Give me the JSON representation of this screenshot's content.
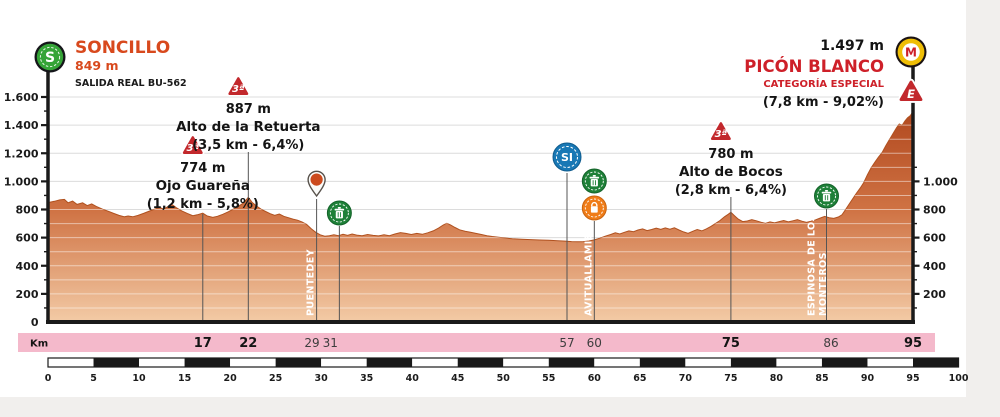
{
  "colors": {
    "card_bg": "#ffffff",
    "page_bg": "#f1efed",
    "accent_orange": "#d8491d",
    "accent_red": "#ce2029",
    "pink_band": "#f4b9cb",
    "axis_black": "#1a1a1a",
    "marker_line": "#555555",
    "grid_gray": "#dcdcdc",
    "profile_top": "#ad431a",
    "profile_mid": "#cf7243",
    "profile_bottom": "#f3cba6",
    "climb_triangle_red": "#c2282c",
    "sprint_blue": "#1878b5",
    "trash_green": "#1e8038",
    "feed_orange": "#ef7c18",
    "pin_orange": "#cc4a1d",
    "start_green": "#35a437",
    "finish_gold": "#efbe06"
  },
  "header": {
    "start": {
      "name": "SONCILLO",
      "elevation": "849 m",
      "road": "SALIDA REAL BU-562"
    },
    "finish": {
      "elevation": "1.497 m",
      "name": "PICÓN BLANCO",
      "category": "CATEGORÍA ESPECIAL",
      "stats": "(7,8 km - 9,02%)"
    }
  },
  "icons": {
    "start_letter": "S",
    "finish_letter": "M",
    "finish_climb_letter": "E"
  },
  "chart_data": {
    "type": "area",
    "xlabel": "Km",
    "ylabel": "m",
    "xlim": [
      0,
      100
    ],
    "ylim": [
      0,
      1700
    ],
    "race_distance_km": 95,
    "grid": true,
    "yticks_left": [
      {
        "v": 1600,
        "label": "1.600"
      },
      {
        "v": 1400,
        "label": "1.400"
      },
      {
        "v": 1200,
        "label": "1.200"
      },
      {
        "v": 1000,
        "label": "1.000"
      },
      {
        "v": 800,
        "label": "800"
      },
      {
        "v": 600,
        "label": "600"
      },
      {
        "v": 400,
        "label": "400"
      },
      {
        "v": 200,
        "label": "200"
      },
      {
        "v": 0,
        "label": "0"
      }
    ],
    "yticks_right": [
      {
        "v": 1000,
        "label": "1.000"
      },
      {
        "v": 800,
        "label": "800"
      },
      {
        "v": 600,
        "label": "600"
      },
      {
        "v": 400,
        "label": "400"
      },
      {
        "v": 200,
        "label": "200"
      }
    ],
    "profile": [
      [
        0,
        849
      ],
      [
        0.7,
        858
      ],
      [
        1.3,
        868
      ],
      [
        1.8,
        872
      ],
      [
        2.2,
        848
      ],
      [
        2.7,
        860
      ],
      [
        3.2,
        836
      ],
      [
        3.8,
        848
      ],
      [
        4.3,
        828
      ],
      [
        4.8,
        840
      ],
      [
        5.3,
        822
      ],
      [
        6,
        802
      ],
      [
        6.6,
        788
      ],
      [
        7.2,
        772
      ],
      [
        7.8,
        758
      ],
      [
        8.4,
        748
      ],
      [
        8.8,
        754
      ],
      [
        9.3,
        748
      ],
      [
        9.9,
        758
      ],
      [
        10.5,
        772
      ],
      [
        11.2,
        790
      ],
      [
        11.8,
        804
      ],
      [
        12.3,
        814
      ],
      [
        12.7,
        802
      ],
      [
        13.2,
        822
      ],
      [
        13.6,
        836
      ],
      [
        14.1,
        812
      ],
      [
        14.7,
        790
      ],
      [
        15.3,
        772
      ],
      [
        15.9,
        756
      ],
      [
        16.4,
        762
      ],
      [
        17,
        774
      ],
      [
        17.5,
        754
      ],
      [
        18.1,
        744
      ],
      [
        18.6,
        752
      ],
      [
        19.2,
        766
      ],
      [
        19.8,
        784
      ],
      [
        20.4,
        804
      ],
      [
        21,
        826
      ],
      [
        21.5,
        848
      ],
      [
        22,
        887
      ],
      [
        22.4,
        852
      ],
      [
        22.9,
        824
      ],
      [
        23.4,
        802
      ],
      [
        23.9,
        786
      ],
      [
        24.4,
        770
      ],
      [
        24.9,
        758
      ],
      [
        25.4,
        768
      ],
      [
        25.9,
        752
      ],
      [
        26.4,
        742
      ],
      [
        26.9,
        732
      ],
      [
        27.4,
        724
      ],
      [
        27.9,
        712
      ],
      [
        28.4,
        694
      ],
      [
        28.9,
        664
      ],
      [
        29.4,
        638
      ],
      [
        29.9,
        620
      ],
      [
        30.4,
        610
      ],
      [
        30.9,
        613
      ],
      [
        31.4,
        620
      ],
      [
        31.9,
        614
      ],
      [
        32.4,
        624
      ],
      [
        32.9,
        616
      ],
      [
        33.4,
        626
      ],
      [
        33.9,
        618
      ],
      [
        34.5,
        614
      ],
      [
        35.1,
        622
      ],
      [
        35.7,
        616
      ],
      [
        36.3,
        612
      ],
      [
        36.9,
        620
      ],
      [
        37.5,
        614
      ],
      [
        38.1,
        626
      ],
      [
        38.7,
        636
      ],
      [
        39.3,
        630
      ],
      [
        39.9,
        622
      ],
      [
        40.5,
        630
      ],
      [
        41.1,
        624
      ],
      [
        41.7,
        634
      ],
      [
        42.3,
        648
      ],
      [
        42.9,
        668
      ],
      [
        43.4,
        690
      ],
      [
        43.8,
        702
      ],
      [
        44.2,
        690
      ],
      [
        44.7,
        672
      ],
      [
        45.2,
        656
      ],
      [
        45.8,
        646
      ],
      [
        46.4,
        638
      ],
      [
        47,
        630
      ],
      [
        47.6,
        622
      ],
      [
        48.2,
        614
      ],
      [
        48.8,
        608
      ],
      [
        49.5,
        602
      ],
      [
        50.2,
        597
      ],
      [
        51,
        592
      ],
      [
        52,
        589
      ],
      [
        53,
        586
      ],
      [
        54,
        583
      ],
      [
        55,
        581
      ],
      [
        56,
        578
      ],
      [
        56.8,
        575
      ],
      [
        57.5,
        572
      ],
      [
        58.2,
        570
      ],
      [
        58.8,
        572
      ],
      [
        59.4,
        576
      ],
      [
        60,
        584
      ],
      [
        60.6,
        596
      ],
      [
        61.2,
        610
      ],
      [
        61.8,
        622
      ],
      [
        62.3,
        634
      ],
      [
        62.8,
        626
      ],
      [
        63.3,
        638
      ],
      [
        63.8,
        648
      ],
      [
        64.3,
        642
      ],
      [
        64.8,
        654
      ],
      [
        65.3,
        662
      ],
      [
        65.8,
        650
      ],
      [
        66.3,
        658
      ],
      [
        66.8,
        668
      ],
      [
        67.3,
        659
      ],
      [
        67.8,
        669
      ],
      [
        68.3,
        660
      ],
      [
        68.8,
        670
      ],
      [
        69.3,
        654
      ],
      [
        69.8,
        641
      ],
      [
        70.3,
        631
      ],
      [
        70.8,
        645
      ],
      [
        71.3,
        658
      ],
      [
        71.8,
        648
      ],
      [
        72.3,
        662
      ],
      [
        72.8,
        680
      ],
      [
        73.3,
        700
      ],
      [
        73.8,
        722
      ],
      [
        74.3,
        748
      ],
      [
        74.7,
        766
      ],
      [
        75,
        780
      ],
      [
        75.4,
        756
      ],
      [
        75.8,
        732
      ],
      [
        76.3,
        714
      ],
      [
        76.8,
        718
      ],
      [
        77.3,
        728
      ],
      [
        77.8,
        720
      ],
      [
        78.3,
        710
      ],
      [
        78.8,
        701
      ],
      [
        79.3,
        712
      ],
      [
        79.8,
        705
      ],
      [
        80.3,
        714
      ],
      [
        80.8,
        722
      ],
      [
        81.3,
        712
      ],
      [
        81.8,
        720
      ],
      [
        82.3,
        728
      ],
      [
        82.8,
        717
      ],
      [
        83.3,
        709
      ],
      [
        83.8,
        717
      ],
      [
        84.3,
        727
      ],
      [
        84.8,
        739
      ],
      [
        85.3,
        751
      ],
      [
        85.8,
        742
      ],
      [
        86.3,
        737
      ],
      [
        86.8,
        747
      ],
      [
        87.2,
        762
      ],
      [
        87.6,
        800
      ],
      [
        88,
        840
      ],
      [
        88.4,
        878
      ],
      [
        88.8,
        916
      ],
      [
        89.2,
        952
      ],
      [
        89.6,
        992
      ],
      [
        90,
        1048
      ],
      [
        90.4,
        1096
      ],
      [
        90.8,
        1136
      ],
      [
        91.2,
        1172
      ],
      [
        91.6,
        1204
      ],
      [
        92,
        1252
      ],
      [
        92.4,
        1296
      ],
      [
        92.8,
        1340
      ],
      [
        93.2,
        1382
      ],
      [
        93.5,
        1408
      ],
      [
        93.8,
        1398
      ],
      [
        94.1,
        1428
      ],
      [
        94.4,
        1452
      ],
      [
        94.7,
        1468
      ],
      [
        95,
        1497
      ]
    ],
    "climbs": [
      {
        "km": 17,
        "altitude": "774 m",
        "name": "Ojo Guareña",
        "stats": "(1,2 km - 5,8%)",
        "category": "3ª",
        "icon_y": 147
      },
      {
        "km": 22,
        "altitude": "887 m",
        "name": "Alto de la Retuerta",
        "stats": "(3,5 km - 6,4%)",
        "category": "3ª",
        "icon_y": 88
      },
      {
        "km": 75,
        "altitude": "780 m",
        "name": "Alto de Bocos",
        "stats": "(2,8 km - 6,4%)",
        "category": "3ª",
        "icon_y": 133
      }
    ],
    "waypoint_labels": [
      {
        "km": 29.5,
        "lines": [
          "PUENTEDEY"
        ]
      },
      {
        "km": 60,
        "lines": [
          "AVITUALLAMIENTO"
        ]
      },
      {
        "km": 85.8,
        "lines": [
          "ESPINOSA DE LOS",
          "MONTEROS"
        ]
      }
    ],
    "markers": [
      {
        "km": 17,
        "line_top": 214,
        "icons": []
      },
      {
        "km": 22,
        "line_top": 152,
        "icons": []
      },
      {
        "km": 29.5,
        "line_top": 199,
        "icons": [
          {
            "type": "pin",
            "y": 183,
            "name": "location-pin-icon"
          }
        ]
      },
      {
        "km": 32,
        "line_top": 226,
        "icons": [
          {
            "type": "trash",
            "y": 213,
            "name": "litter-zone-icon"
          }
        ]
      },
      {
        "km": 57,
        "line_top": 173,
        "icons": [
          {
            "type": "sprint",
            "y": 157,
            "name": "intermediate-sprint-icon",
            "label": "SI"
          }
        ]
      },
      {
        "km": 60,
        "line_top": 221,
        "icons": [
          {
            "type": "trash",
            "y": 181,
            "name": "litter-zone-icon"
          },
          {
            "type": "feedzone",
            "y": 208,
            "name": "feed-zone-icon"
          }
        ]
      },
      {
        "km": 75,
        "line_top": 197,
        "icons": []
      },
      {
        "km": 85.5,
        "line_top": 209,
        "icons": [
          {
            "type": "trash",
            "y": 196,
            "name": "litter-zone-icon"
          }
        ]
      }
    ],
    "km_band": {
      "label": "Km",
      "values": [
        {
          "km": 17,
          "label": "17",
          "bold": true
        },
        {
          "km": 22,
          "label": "22",
          "bold": true
        },
        {
          "km": 29,
          "label": "29",
          "bold": false
        },
        {
          "km": 31,
          "label": "31",
          "bold": false
        },
        {
          "km": 57,
          "label": "57",
          "bold": false
        },
        {
          "km": 60,
          "label": "60",
          "bold": false
        },
        {
          "km": 75,
          "label": "75",
          "bold": true
        },
        {
          "km": 86,
          "label": "86",
          "bold": false
        },
        {
          "km": 95,
          "label": "95",
          "bold": true
        }
      ]
    },
    "scale_bar": {
      "min": 0,
      "max": 100,
      "step": 5
    }
  }
}
